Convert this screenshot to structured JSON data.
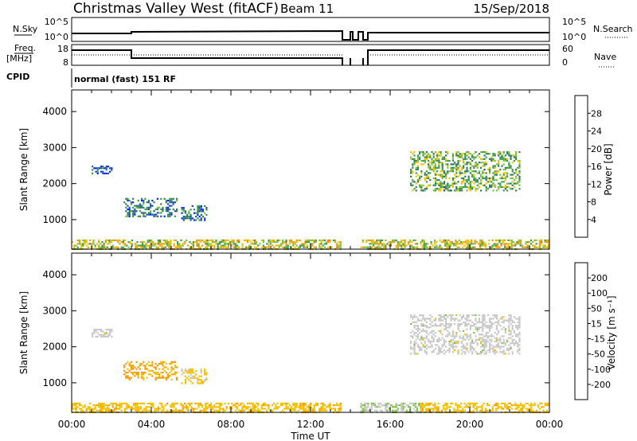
{
  "header": {
    "title": "Christmas Valley West (fitACF)",
    "beam": "Beam 11",
    "date": "15/Sep/2018"
  },
  "top_panels": {
    "nsky_label": "N.Sky",
    "nsky_ticks": [
      "10^5",
      "10^0"
    ],
    "nsearch_label": "N.Search",
    "nsearch_ticks": [
      "10^5",
      "10^0"
    ],
    "freq_label_line1": "Freq.",
    "freq_label_line2": "[MHz]",
    "freq_ticks": [
      "18",
      "8"
    ],
    "nave_label": "Nave",
    "nave_ticks": [
      "60",
      "0"
    ],
    "cpid_label": "CPID",
    "cpid_value": "normal (fast) 151 RF"
  },
  "colors": {
    "power_scale": [
      "#0026ff",
      "#1f4fb5",
      "#2f7a5a",
      "#3e9a4a",
      "#7dc241",
      "#f2c200",
      "#f79a00",
      "#f36a00",
      "#e5001b"
    ],
    "velocity_scale": [
      "#e5001b",
      "#f36a00",
      "#f79a00",
      "#f2c200",
      "#c8c8c8",
      "#7dc241",
      "#2f8a4a",
      "#2456b0",
      "#0026ff"
    ]
  },
  "chart_data": [
    {
      "type": "heatmap",
      "quantity": "power",
      "ylabel": "Slant Range [km]",
      "yticks": [
        "4000",
        "3000",
        "2000",
        "1000"
      ],
      "ylim": [
        180,
        4600
      ],
      "xlim": [
        0,
        24
      ],
      "colorbar_label": "Power [dB]",
      "colorbar_ticks": [
        "28",
        "24",
        "20",
        "16",
        "12",
        "8",
        "4"
      ],
      "colorbar_range": [
        0,
        32
      ],
      "data_gap_hours": [
        13.5,
        14.5
      ],
      "echo_regions": [
        {
          "t_start": 0.0,
          "t_end": 13.5,
          "range_min": 180,
          "range_max": 450,
          "value": 18
        },
        {
          "t_start": 14.5,
          "t_end": 24.0,
          "range_min": 180,
          "range_max": 450,
          "value": 18
        },
        {
          "t_start": 2.6,
          "t_end": 5.3,
          "range_min": 1100,
          "range_max": 1600,
          "value": 8
        },
        {
          "t_start": 5.5,
          "t_end": 6.8,
          "range_min": 1000,
          "range_max": 1400,
          "value": 8
        },
        {
          "t_start": 1.0,
          "t_end": 2.0,
          "range_min": 2300,
          "range_max": 2500,
          "value": 6
        },
        {
          "t_start": 17.0,
          "t_end": 22.5,
          "range_min": 1800,
          "range_max": 2900,
          "value": 14
        }
      ]
    },
    {
      "type": "heatmap",
      "quantity": "velocity",
      "ylabel": "Slant Range [km]",
      "yticks": [
        "4000",
        "3000",
        "2000",
        "1000"
      ],
      "ylim": [
        180,
        4600
      ],
      "xlim": [
        0,
        24
      ],
      "xlabel": "Time UT",
      "xticks": [
        "00:00",
        "04:00",
        "08:00",
        "12:00",
        "16:00",
        "20:00",
        "00:00"
      ],
      "colorbar_label": "Velocity [m s⁻¹]",
      "colorbar_ticks": [
        "200",
        "100",
        "50",
        "15",
        "-15",
        "-50",
        "-100",
        "-200"
      ],
      "colorbar_range": [
        -250,
        250
      ],
      "data_gap_hours": [
        13.5,
        14.5
      ],
      "echo_regions": [
        {
          "t_start": 0.0,
          "t_end": 13.5,
          "range_min": 180,
          "range_max": 450,
          "value": -60
        },
        {
          "t_start": 14.5,
          "t_end": 17.5,
          "range_min": 180,
          "range_max": 450,
          "value": 30
        },
        {
          "t_start": 17.5,
          "t_end": 24.0,
          "range_min": 180,
          "range_max": 450,
          "value": -60
        },
        {
          "t_start": 2.6,
          "t_end": 5.3,
          "range_min": 1100,
          "range_max": 1600,
          "value": -90
        },
        {
          "t_start": 5.5,
          "t_end": 6.8,
          "range_min": 1000,
          "range_max": 1400,
          "value": -40
        },
        {
          "t_start": 1.0,
          "t_end": 2.0,
          "range_min": 2300,
          "range_max": 2500,
          "value": 0
        },
        {
          "t_start": 17.0,
          "t_end": 22.5,
          "range_min": 1800,
          "range_max": 2900,
          "value": 0
        }
      ]
    }
  ]
}
